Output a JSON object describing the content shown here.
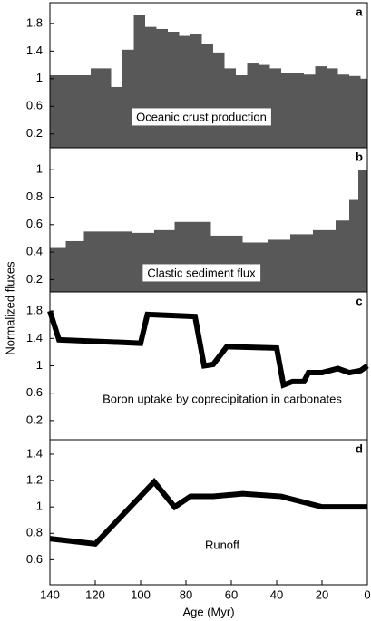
{
  "ylabel": "Normalized fluxes",
  "chart_data": [
    {
      "type": "histogram",
      "label": "a",
      "annotation": "Oceanic crust production",
      "color": "#585858",
      "bins": [
        140,
        122,
        113,
        108,
        103,
        98,
        93,
        88,
        83,
        78,
        73,
        68,
        63,
        58,
        53,
        48,
        43,
        38,
        33,
        28,
        23,
        18,
        13,
        8,
        3,
        0
      ],
      "values": [
        1.05,
        1.15,
        0.88,
        1.42,
        1.92,
        1.75,
        1.72,
        1.68,
        1.62,
        1.65,
        1.5,
        1.38,
        1.15,
        1.05,
        1.22,
        1.2,
        1.15,
        1.08,
        1.08,
        1.06,
        1.18,
        1.15,
        1.06,
        1.04,
        1.0
      ],
      "xlim": [
        140,
        0
      ],
      "ylim": [
        0,
        2.1
      ],
      "yticks": [
        0.2,
        0.6,
        1,
        1.4,
        1.8
      ]
    },
    {
      "type": "histogram",
      "label": "b",
      "annotation": "Clastic sediment flux",
      "color": "#585858",
      "bins": [
        140,
        133,
        125,
        114,
        104,
        94,
        85,
        69,
        55,
        44,
        34,
        24,
        14,
        8,
        4,
        0
      ],
      "values": [
        0.43,
        0.48,
        0.55,
        0.55,
        0.54,
        0.56,
        0.62,
        0.52,
        0.47,
        0.49,
        0.53,
        0.56,
        0.63,
        0.78,
        1.0
      ],
      "xlim": [
        140,
        0
      ],
      "ylim": [
        0.11,
        1.16
      ],
      "yticks": [
        0.2,
        0.4,
        0.6,
        0.8,
        1
      ]
    },
    {
      "type": "line",
      "label": "c",
      "annotation": "Boron uptake by coprecipitation in carbonates",
      "color": "#000000",
      "x": [
        140,
        136,
        100,
        97,
        76,
        72,
        68,
        62,
        40,
        37,
        33,
        28,
        26,
        20,
        13,
        8,
        3,
        0
      ],
      "values": [
        1.8,
        1.38,
        1.33,
        1.75,
        1.72,
        1.0,
        1.02,
        1.28,
        1.26,
        0.72,
        0.77,
        0.77,
        0.9,
        0.9,
        0.96,
        0.9,
        0.93,
        1.0
      ],
      "xlim": [
        140,
        0
      ],
      "ylim": [
        -0.08,
        2.08
      ],
      "yticks": [
        0.2,
        0.6,
        1,
        1.4,
        1.8
      ]
    },
    {
      "type": "line",
      "label": "d",
      "annotation": "Runoff",
      "color": "#000000",
      "x": [
        140,
        120,
        94,
        85,
        78,
        68,
        55,
        38,
        20,
        0
      ],
      "values": [
        0.76,
        0.72,
        1.19,
        1.0,
        1.08,
        1.08,
        1.1,
        1.08,
        1.0,
        1.0
      ],
      "xlim": [
        140,
        0
      ],
      "ylim": [
        0.41,
        1.51
      ],
      "yticks": [
        0.6,
        0.8,
        1,
        1.2,
        1.4
      ],
      "xlabel": "Age (Myr)",
      "xticks": [
        140,
        120,
        100,
        80,
        60,
        40,
        20,
        0
      ]
    }
  ]
}
